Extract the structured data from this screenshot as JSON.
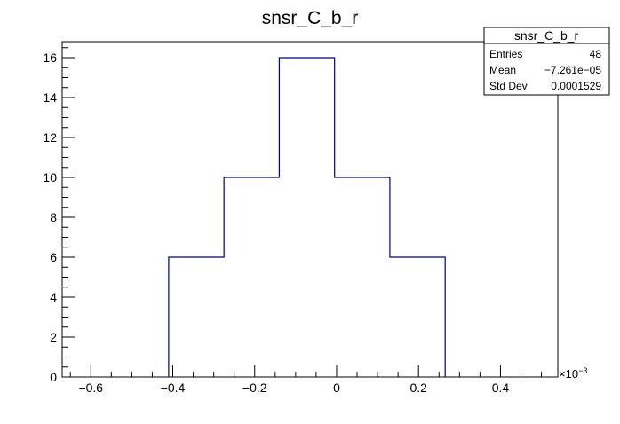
{
  "chart_data": {
    "type": "bar",
    "title": "snsr_C_b_r",
    "xlabel": "",
    "ylabel": "",
    "x_multiplier_label": "×10",
    "x_multiplier_exponent": "−3",
    "xlim": [
      -0.67,
      0.54
    ],
    "ylim": [
      0,
      16.8
    ],
    "x_ticks": [
      {
        "value": -0.6,
        "label": "−0.6"
      },
      {
        "value": -0.4,
        "label": "−0.4"
      },
      {
        "value": -0.2,
        "label": "−0.2"
      },
      {
        "value": 0.0,
        "label": "0"
      },
      {
        "value": 0.2,
        "label": "0.2"
      },
      {
        "value": 0.4,
        "label": "0.4"
      }
    ],
    "y_ticks": [
      {
        "value": 0,
        "label": "0"
      },
      {
        "value": 2,
        "label": "2"
      },
      {
        "value": 4,
        "label": "4"
      },
      {
        "value": 6,
        "label": "6"
      },
      {
        "value": 8,
        "label": "8"
      },
      {
        "value": 10,
        "label": "10"
      },
      {
        "value": 12,
        "label": "12"
      },
      {
        "value": 14,
        "label": "14"
      },
      {
        "value": 16,
        "label": "16"
      }
    ],
    "bins": [
      {
        "low": -0.41,
        "high": -0.275,
        "count": 6
      },
      {
        "low": -0.275,
        "high": -0.14,
        "count": 10
      },
      {
        "low": -0.14,
        "high": -0.005,
        "count": 16
      },
      {
        "low": -0.005,
        "high": 0.13,
        "count": 10
      },
      {
        "low": 0.13,
        "high": 0.265,
        "count": 6
      }
    ],
    "line_color": "#000080",
    "grid": false,
    "stats": {
      "title": "snsr_C_b_r",
      "rows": [
        {
          "label": "Entries",
          "value": "48"
        },
        {
          "label": "Mean",
          "value": "−7.261e−05"
        },
        {
          "label": "Std Dev",
          "value": "0.0001529"
        }
      ]
    }
  }
}
